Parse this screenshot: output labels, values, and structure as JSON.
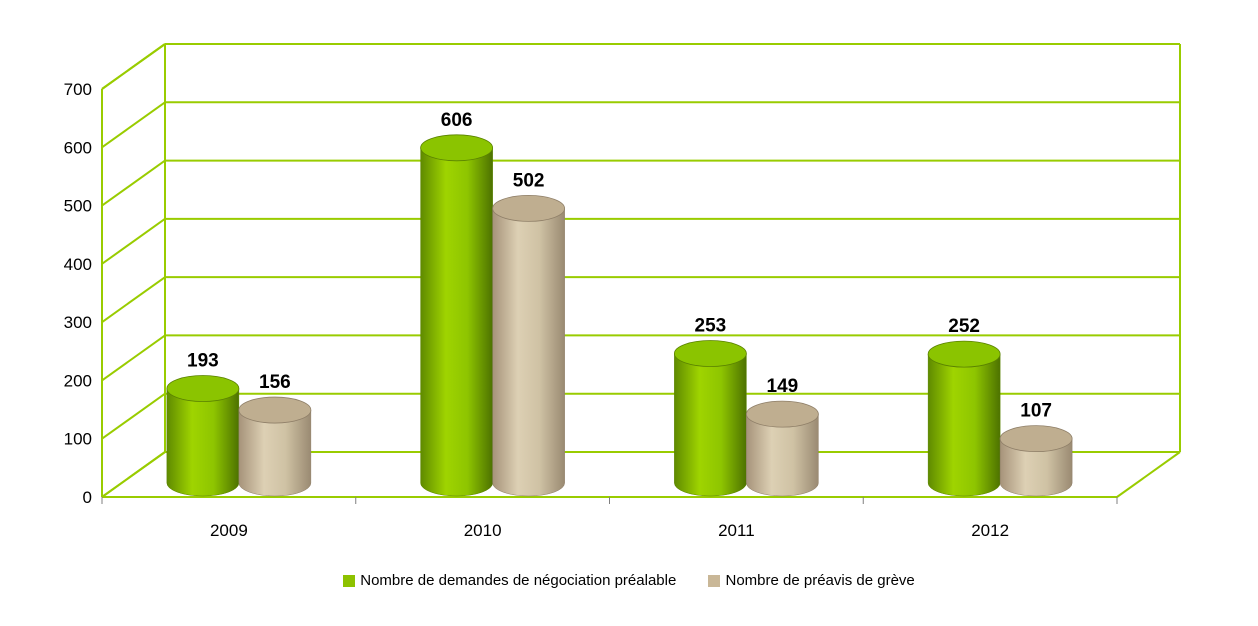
{
  "chart_data": {
    "type": "bar",
    "title": "",
    "xlabel": "",
    "ylabel": "",
    "categories": [
      "2009",
      "2010",
      "2011",
      "2012"
    ],
    "y_ticks": [
      "0",
      "100",
      "200",
      "300",
      "400",
      "500",
      "600",
      "700"
    ],
    "ylim": [
      0,
      700
    ],
    "grid": true,
    "legend_position": "bottom",
    "series": [
      {
        "name": "Nombre de demandes de négociation préalable",
        "values": [
          193,
          606,
          253,
          252
        ],
        "color": "#8dc200"
      },
      {
        "name": "Nombre de préavis de grève",
        "values": [
          156,
          502,
          149,
          107
        ],
        "color": "#c9b797"
      }
    ],
    "data_labels": [
      [
        "193",
        "606",
        "253",
        "252"
      ],
      [
        "156",
        "502",
        "149",
        "107"
      ]
    ],
    "grid_color": "#99cc00"
  }
}
